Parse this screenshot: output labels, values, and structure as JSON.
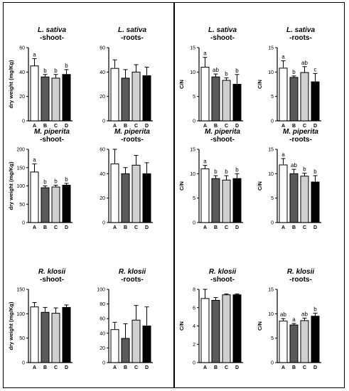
{
  "colors": {
    "A": "#ffffff",
    "B": "#595959",
    "C": "#d0d0d0",
    "D": "#000000",
    "axis": "#000000"
  },
  "chart_data": [
    {
      "type": "bar",
      "title": "L. sativa",
      "subtitle": "-shoot-",
      "ylabel": "dry weight (mg/Kg)",
      "ylim": [
        0,
        60
      ],
      "yticks": [
        0,
        20,
        40,
        60
      ],
      "categories": [
        "A",
        "B",
        "C",
        "D"
      ],
      "values": [
        45,
        36,
        35,
        38
      ],
      "errors": [
        6,
        2,
        3,
        4
      ],
      "letters": [
        "a",
        "b",
        "b",
        "b"
      ]
    },
    {
      "type": "bar",
      "title": "L. sativa",
      "subtitle": "-roots-",
      "ylabel": "",
      "ylim": [
        0,
        60
      ],
      "yticks": [
        0,
        20,
        40,
        60
      ],
      "categories": [
        "A",
        "B",
        "C",
        "D"
      ],
      "values": [
        43,
        35,
        40,
        37
      ],
      "errors": [
        7,
        7,
        6,
        7
      ],
      "letters": [
        "",
        "",
        "",
        ""
      ]
    },
    {
      "type": "bar",
      "title": "L. sativa",
      "subtitle": "-shoot-",
      "ylabel": "C/N",
      "ylim": [
        0,
        15
      ],
      "yticks": [
        0,
        5,
        10,
        15
      ],
      "categories": [
        "A",
        "B",
        "C",
        "D"
      ],
      "values": [
        11,
        9,
        8.3,
        7.5
      ],
      "errors": [
        2,
        0.6,
        0.5,
        2
      ],
      "letters": [
        "a",
        "ab",
        "b",
        "b"
      ]
    },
    {
      "type": "bar",
      "title": "L. sativa",
      "subtitle": "-roots-",
      "ylabel": "C/N",
      "ylim": [
        0,
        15
      ],
      "yticks": [
        0,
        5,
        10,
        15
      ],
      "categories": [
        "A",
        "B",
        "C",
        "D"
      ],
      "values": [
        10.8,
        8.9,
        9.9,
        8
      ],
      "errors": [
        1.5,
        0.3,
        1.2,
        1.7
      ],
      "letters": [
        "a",
        "b",
        "ab",
        "c"
      ]
    },
    {
      "type": "bar",
      "title": "M. piperita",
      "subtitle": "-shoot-",
      "ylabel": "dry weight (mg/Kg)",
      "ylim": [
        0,
        200
      ],
      "yticks": [
        0,
        50,
        100,
        150,
        200
      ],
      "categories": [
        "A",
        "B",
        "C",
        "D"
      ],
      "values": [
        138,
        95,
        97,
        102
      ],
      "errors": [
        22,
        5,
        5,
        5
      ],
      "letters": [
        "a",
        "b",
        "b",
        "b"
      ]
    },
    {
      "type": "bar",
      "title": "M. piperita",
      "subtitle": "-roots-",
      "ylabel": "",
      "ylim": [
        0,
        60
      ],
      "yticks": [
        0,
        20,
        40,
        60
      ],
      "categories": [
        "A",
        "B",
        "C",
        "D"
      ],
      "values": [
        48,
        40,
        47,
        40
      ],
      "errors": [
        13,
        5,
        8,
        9
      ],
      "letters": [
        "",
        "",
        "",
        ""
      ]
    },
    {
      "type": "bar",
      "title": "M. piperita",
      "subtitle": "-shoot-",
      "ylabel": "C/N",
      "ylim": [
        0,
        15
      ],
      "yticks": [
        0,
        5,
        10,
        15
      ],
      "categories": [
        "A",
        "B",
        "C",
        "D"
      ],
      "values": [
        11,
        9,
        8.7,
        9
      ],
      "errors": [
        0.7,
        0.6,
        0.9,
        1
      ],
      "letters": [
        "a",
        "b",
        "b",
        "b"
      ]
    },
    {
      "type": "bar",
      "title": "M. piperita",
      "subtitle": "-roots-",
      "ylabel": "C/N",
      "ylim": [
        0,
        15
      ],
      "yticks": [
        0,
        5,
        10,
        15
      ],
      "categories": [
        "A",
        "B",
        "C",
        "D"
      ],
      "values": [
        11.8,
        10,
        9.5,
        8.3
      ],
      "errors": [
        1.3,
        0.9,
        0.6,
        1.3
      ],
      "letters": [
        "a",
        "ab",
        "b",
        "b"
      ]
    },
    {
      "type": "bar",
      "title": "R. klosii",
      "subtitle": "-shoot-",
      "ylabel": "dry weight (mg/Kg)",
      "ylim": [
        0,
        150
      ],
      "yticks": [
        0,
        50,
        100,
        150
      ],
      "categories": [
        "A",
        "B",
        "C",
        "D"
      ],
      "values": [
        114,
        103,
        101,
        113
      ],
      "errors": [
        9,
        10,
        11,
        5
      ],
      "letters": [
        "",
        "",
        "",
        ""
      ]
    },
    {
      "type": "bar",
      "title": "R. klosii",
      "subtitle": "-roots-",
      "ylabel": "",
      "ylim": [
        0,
        100
      ],
      "yticks": [
        0,
        20,
        40,
        60,
        80,
        100
      ],
      "categories": [
        "A",
        "B",
        "C",
        "D"
      ],
      "values": [
        45,
        33,
        58,
        50
      ],
      "errors": [
        10,
        20,
        20,
        26
      ],
      "letters": [
        "",
        "",
        "",
        ""
      ]
    },
    {
      "type": "bar",
      "title": "R. klosii",
      "subtitle": "-shoot-",
      "ylabel": "C/N",
      "ylim": [
        0,
        8
      ],
      "yticks": [
        0,
        2,
        4,
        6,
        8
      ],
      "categories": [
        "A",
        "B",
        "C",
        "D"
      ],
      "values": [
        7,
        6.8,
        7.4,
        7.4
      ],
      "errors": [
        1.2,
        0.3,
        0.1,
        0.1
      ],
      "letters": [
        "",
        "",
        "",
        ""
      ]
    },
    {
      "type": "bar",
      "title": "R. klosii",
      "subtitle": "-roots-",
      "ylabel": "C/N",
      "ylim": [
        0,
        15
      ],
      "yticks": [
        0,
        5,
        10,
        15
      ],
      "categories": [
        "A",
        "B",
        "C",
        "D"
      ],
      "values": [
        8.5,
        7.7,
        8.6,
        9.5
      ],
      "errors": [
        0.5,
        0.3,
        0.5,
        0.6
      ],
      "letters": [
        "ab",
        "a",
        "ab",
        "b"
      ]
    }
  ]
}
